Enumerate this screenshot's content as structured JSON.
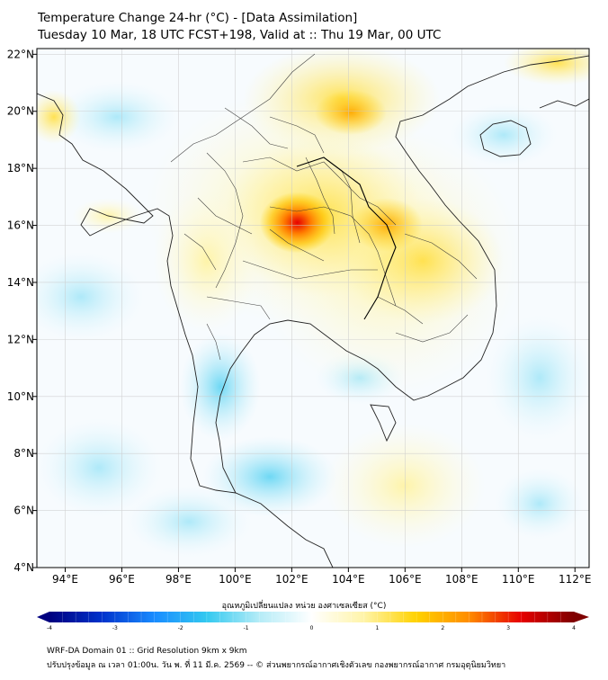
{
  "title": {
    "line1": "Temperature Change 24-hr (°C) - [Data Assimilation]",
    "line2": "Tuesday 10 Mar, 18 UTC FCST+198, Valid at :: Thu 19 Mar, 00 UTC"
  },
  "map": {
    "lon_ticks": [
      "94°E",
      "96°E",
      "98°E",
      "100°E",
      "102°E",
      "104°E",
      "106°E",
      "108°E",
      "110°E",
      "112°E"
    ],
    "lat_ticks": [
      "4°N",
      "6°N",
      "8°N",
      "10°N",
      "12°N",
      "14°N",
      "16°N",
      "18°N",
      "20°N",
      "22°N"
    ],
    "lon_range": [
      93,
      112.5
    ],
    "lat_range": [
      4,
      22.2
    ],
    "hotspot": {
      "lon": 102.2,
      "lat": 16.1,
      "value": 3.0
    }
  },
  "colorbar": {
    "title": "อุณหภูมิเปลี่ยนแปลง หน่วย องศาเซลเซียส (°C)",
    "tick_labels": [
      "-4",
      "-3",
      "-2",
      "-1",
      "0",
      "1",
      "2",
      "3",
      "4"
    ],
    "range": [
      -4,
      4
    ],
    "colors": [
      "#00007f",
      "#0033cc",
      "#1a8cff",
      "#33c9f0",
      "#b5ecf7",
      "#ffffff",
      "#fff4a8",
      "#ffd200",
      "#ff8c00",
      "#e60000",
      "#7f0000"
    ]
  },
  "footer": {
    "line1": "WRF-DA Domain 01 :: Grid Resolution 9km x 9km",
    "line2": "ปรับปรุงข้อมูล ณ เวลา 01:00น. วัน พ. ที่ 11 มี.ค. 2569 -- © ส่วนพยากรณ์อากาศเชิงตัวเลข กองพยากรณ์อากาศ กรมอุตุนิยมวิทยา"
  }
}
